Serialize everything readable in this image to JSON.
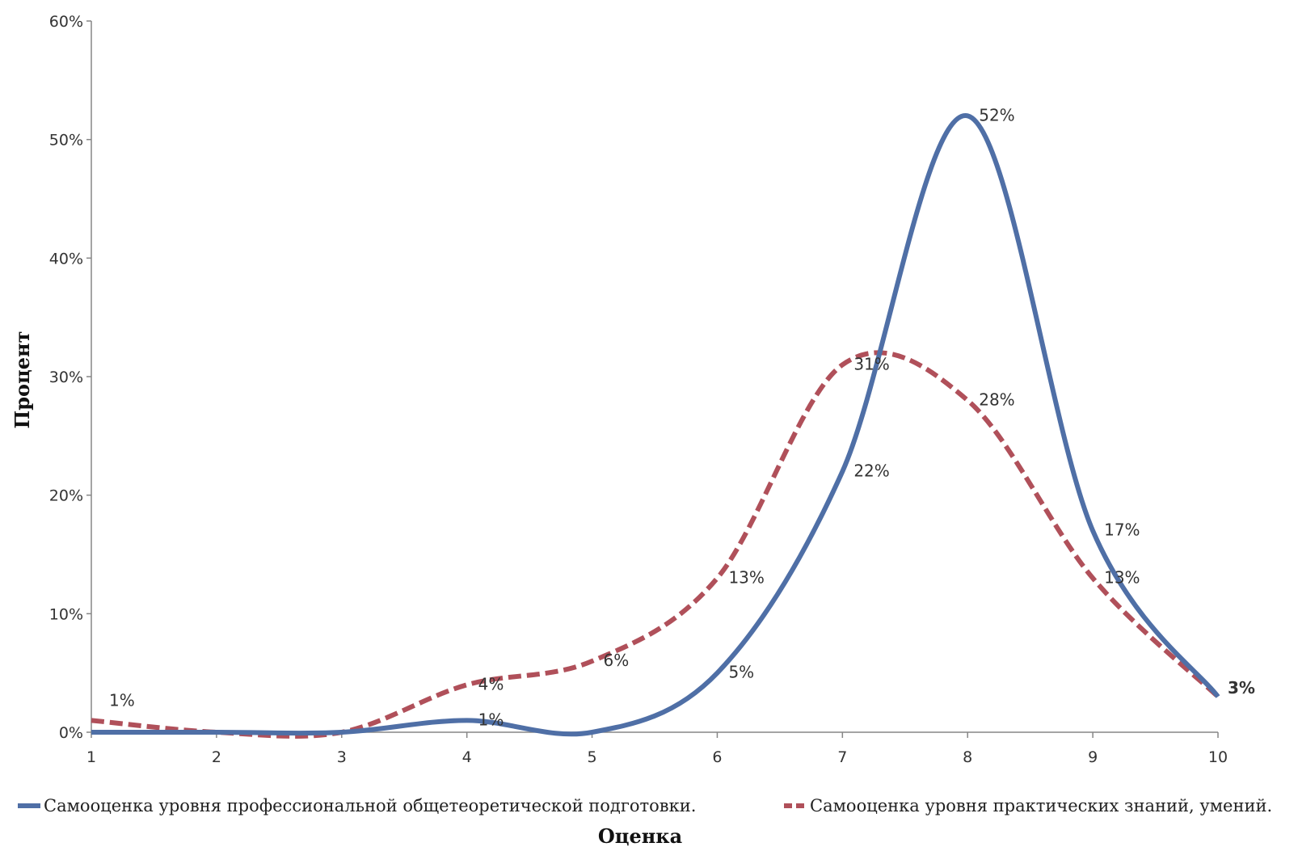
{
  "chart_data": {
    "type": "line",
    "title": "",
    "xlabel": "Оценка",
    "ylabel": "Процент",
    "x": [
      1,
      2,
      3,
      4,
      5,
      6,
      7,
      8,
      9,
      10
    ],
    "xlim": [
      1,
      10
    ],
    "ylim": [
      0,
      60
    ],
    "y_ticks": [
      0,
      10,
      20,
      30,
      40,
      50,
      60
    ],
    "y_tick_labels": [
      "0%",
      "10%",
      "20%",
      "30%",
      "40%",
      "50%",
      "60%"
    ],
    "x_tick_labels": [
      "1",
      "2",
      "3",
      "4",
      "5",
      "6",
      "7",
      "8",
      "9",
      "10"
    ],
    "grid": false,
    "smooth": true,
    "legend_position": "bottom",
    "series": [
      {
        "name": "Самооценка уровня профессиональной общетеоретической подготовки.",
        "color": "#4f6fa6",
        "style": "solid",
        "values": [
          0,
          0,
          0,
          1,
          0,
          5,
          22,
          52,
          17,
          3
        ],
        "labels": [
          "",
          "",
          "",
          "1%",
          "",
          "5%",
          "22%",
          "52%",
          "17%",
          "3%"
        ]
      },
      {
        "name": "Самооценка уровня практических знаний, умений.",
        "color": "#b0505a",
        "style": "dashed",
        "values": [
          1,
          0,
          0,
          4,
          6,
          13,
          31,
          28,
          13,
          3
        ],
        "labels": [
          "1%",
          "",
          "",
          "4%",
          "6%",
          "13%",
          "31%",
          "28%",
          "13%",
          ""
        ]
      }
    ]
  }
}
